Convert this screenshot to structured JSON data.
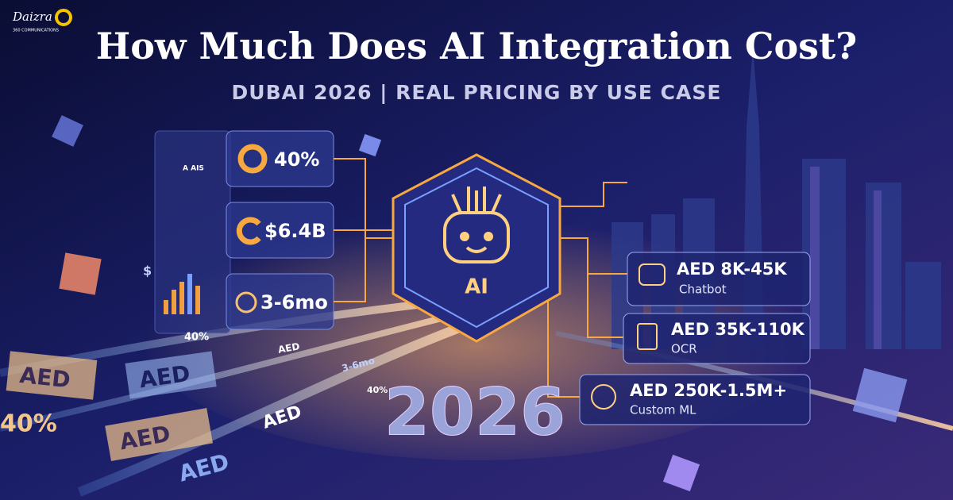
{
  "logo": {
    "name": "Daizra",
    "tagline": "360 COMMUNICATIONS"
  },
  "header": {
    "title": "How Much Does AI Integration Cost?",
    "subtitle": "DUBAI 2026 | REAL PRICING BY USE CASE"
  },
  "stats": [
    {
      "value": "40%"
    },
    {
      "value": "$6.4B"
    },
    {
      "value": "3-6mo"
    }
  ],
  "center": {
    "label": "AI"
  },
  "pricing": [
    {
      "price": "AED 8K-45K",
      "label": "Chatbot"
    },
    {
      "price": "AED 35K-110K",
      "label": "OCR"
    },
    {
      "price": "AED 250K-1.5M+",
      "label": "Custom ML"
    }
  ],
  "year": "2026",
  "decor": [
    "AED",
    "AED",
    "AED",
    "AED",
    "AED",
    "40%",
    "40%",
    "3-6mo",
    "$",
    "AED",
    "40%",
    "A AIS"
  ]
}
